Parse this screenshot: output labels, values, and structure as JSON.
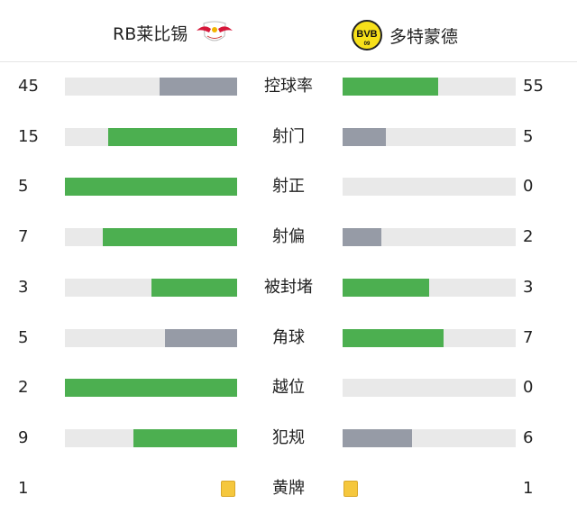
{
  "home": {
    "name": "RB莱比锡",
    "logo": "rb-leipzig-logo"
  },
  "away": {
    "name": "多特蒙德",
    "logo": "bvb-logo",
    "logo_text": "BVB 09"
  },
  "colors": {
    "leading": "#4caf50",
    "trailing": "#969ba6",
    "track": "#e9e9e9",
    "yellow_card": "#f5c73d"
  },
  "stats": [
    {
      "label": "控球率",
      "home": 45,
      "away": 55
    },
    {
      "label": "射门",
      "home": 15,
      "away": 5
    },
    {
      "label": "射正",
      "home": 5,
      "away": 0
    },
    {
      "label": "射偏",
      "home": 7,
      "away": 2
    },
    {
      "label": "被封堵",
      "home": 3,
      "away": 3
    },
    {
      "label": "角球",
      "home": 5,
      "away": 7
    },
    {
      "label": "越位",
      "home": 2,
      "away": 0
    },
    {
      "label": "犯规",
      "home": 9,
      "away": 6
    }
  ],
  "cards": {
    "label": "黄牌",
    "home": 1,
    "away": 1,
    "icon": "yellow-card-icon"
  }
}
